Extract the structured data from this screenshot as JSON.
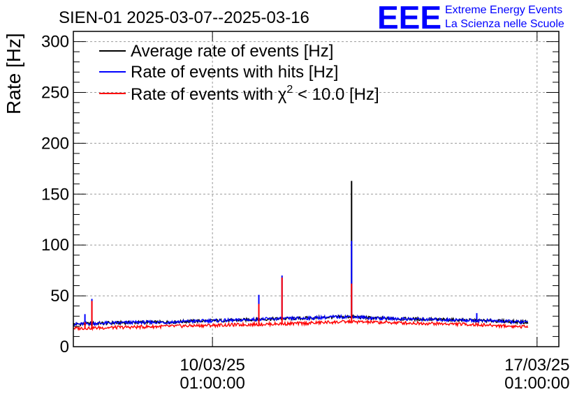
{
  "chart_data": {
    "type": "line",
    "title": "SIEN-01 2025-03-07--2025-03-16",
    "xlabel": "",
    "ylabel": "Rate [Hz]",
    "ylim": [
      0,
      310
    ],
    "xlim": [
      0,
      10.47
    ],
    "y_ticks": [
      0,
      50,
      100,
      150,
      200,
      250,
      300
    ],
    "x_ticks": [
      {
        "x": 3,
        "date": "10/03/25",
        "time": "01:00:00"
      },
      {
        "x": 10,
        "date": "17/03/25",
        "time": "01:00:00"
      }
    ],
    "grid": true,
    "legend_placement": "top-left",
    "legend": [
      {
        "name": "Average rate of events [Hz]",
        "color": "#000000"
      },
      {
        "name": "Rate of events with hits [Hz]",
        "color": "#0000ff"
      },
      {
        "name": "Rate of events with χ² < 10.0 [Hz]",
        "color": "#ff0000",
        "label_pre": "Rate of events with χ",
        "label_sup": "2",
        "label_post": " < 10.0 [Hz]"
      }
    ],
    "series": [
      {
        "name": "Average rate of events [Hz]",
        "color": "#000000",
        "x": [
          0.0,
          0.5,
          1.0,
          1.5,
          2.0,
          2.5,
          3.0,
          3.5,
          4.0,
          4.5,
          5.0,
          5.5,
          6.0,
          6.5,
          7.0,
          7.5,
          8.0,
          8.5,
          9.0,
          9.5,
          9.8
        ],
        "y": [
          22,
          23,
          23.5,
          24,
          24,
          25,
          25.5,
          26,
          27,
          27.5,
          28,
          29,
          29.5,
          28,
          27.5,
          27,
          26.5,
          26,
          25.5,
          24.5,
          24
        ],
        "spikes": [
          {
            "x": 6.0,
            "y": 163
          }
        ]
      },
      {
        "name": "Rate of events with hits [Hz]",
        "color": "#0000ff",
        "x": [
          0.0,
          0.5,
          1.0,
          1.5,
          2.0,
          2.5,
          3.0,
          3.5,
          4.0,
          4.5,
          5.0,
          5.5,
          6.0,
          6.5,
          7.0,
          7.5,
          8.0,
          8.5,
          9.0,
          9.5,
          9.8
        ],
        "y": [
          22,
          23,
          23.5,
          24,
          24,
          25,
          25.5,
          26,
          27,
          27.5,
          28,
          29,
          29.5,
          28,
          27.5,
          27,
          26.5,
          26,
          25.5,
          24.5,
          24
        ],
        "spikes": [
          {
            "x": 0.25,
            "y": 32
          },
          {
            "x": 0.4,
            "y": 47
          },
          {
            "x": 4.0,
            "y": 51
          },
          {
            "x": 4.5,
            "y": 70
          },
          {
            "x": 6.0,
            "y": 104
          },
          {
            "x": 8.7,
            "y": 33
          }
        ]
      },
      {
        "name": "Rate of events with χ² < 10.0 [Hz]",
        "color": "#ff0000",
        "x": [
          0.0,
          0.5,
          1.0,
          1.5,
          2.0,
          2.5,
          3.0,
          3.5,
          4.0,
          4.5,
          5.0,
          5.5,
          6.0,
          6.5,
          7.0,
          7.5,
          8.0,
          8.5,
          9.0,
          9.5,
          9.8
        ],
        "y": [
          18,
          18.5,
          19,
          19.5,
          20,
          20.5,
          21,
          21.5,
          22,
          22.5,
          23,
          24,
          24.5,
          24,
          23.5,
          23,
          22.5,
          22,
          21,
          20,
          19.5
        ],
        "spikes": [
          {
            "x": 0.25,
            "y": 24
          },
          {
            "x": 0.4,
            "y": 45
          },
          {
            "x": 4.0,
            "y": 42
          },
          {
            "x": 4.5,
            "y": 68
          },
          {
            "x": 6.0,
            "y": 62
          }
        ]
      }
    ]
  },
  "logo": {
    "mark": "EEE",
    "line1": "Extreme Energy Events",
    "line2": "La Scienza nelle Scuole",
    "color": "#0000ff"
  }
}
